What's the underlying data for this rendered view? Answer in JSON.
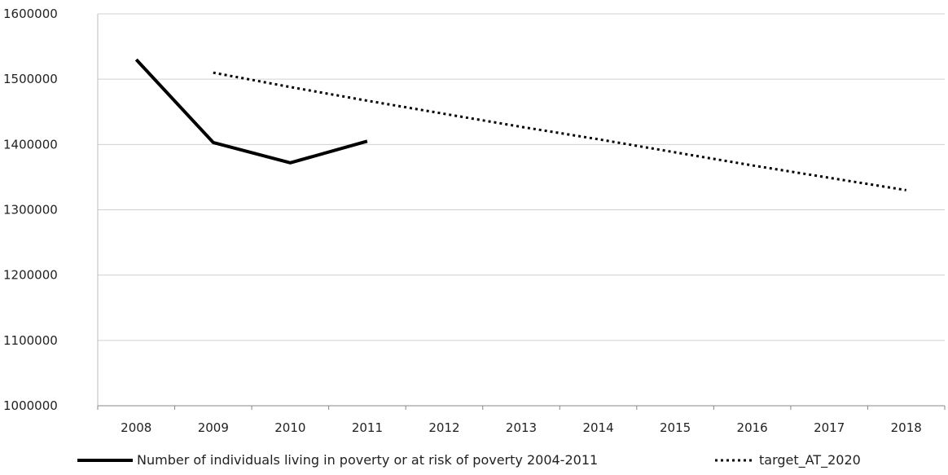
{
  "chart_data": {
    "type": "line",
    "x": [
      "2008",
      "2009",
      "2010",
      "2011",
      "2012",
      "2013",
      "2014",
      "2015",
      "2016",
      "2017",
      "2018"
    ],
    "ylim": [
      1000000,
      1600000
    ],
    "yticks": [
      "1000000",
      "1100000",
      "1200000",
      "1300000",
      "1400000",
      "1500000",
      "1600000"
    ],
    "grid": true,
    "legend_position": "bottom",
    "series": [
      {
        "name": "Number of individuals living in poverty or at risk of poverty 2004-2011",
        "style": "solid",
        "color": "#000000",
        "values": [
          1530000,
          1403000,
          1372000,
          1405000,
          null,
          null,
          null,
          null,
          null,
          null,
          null
        ]
      },
      {
        "name": "target_AT_2020",
        "style": "dotted",
        "color": "#000000",
        "values": [
          null,
          1510000,
          1488000,
          1467000,
          1447000,
          1427000,
          1408000,
          1388000,
          1368000,
          1349000,
          1330000
        ]
      }
    ]
  }
}
